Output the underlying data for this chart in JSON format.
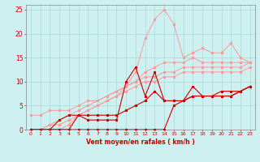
{
  "title": "",
  "xlabel": "Vent moyen/en rafales ( km/h )",
  "bg_color": "#cff0f0",
  "grid_color": "#aadddd",
  "line_color_light": "#ff9999",
  "line_color_dark": "#cc0000",
  "xlim": [
    -0.5,
    23.5
  ],
  "ylim": [
    0,
    26
  ],
  "xticks": [
    0,
    1,
    2,
    3,
    4,
    5,
    6,
    7,
    8,
    9,
    10,
    11,
    12,
    13,
    14,
    15,
    16,
    17,
    18,
    19,
    20,
    21,
    22,
    23
  ],
  "yticks": [
    0,
    5,
    10,
    15,
    20,
    25
  ],
  "lines_light": [
    [
      0,
      3,
      1,
      3,
      2,
      4,
      3,
      4,
      4,
      4,
      5,
      5,
      6,
      6,
      7,
      6,
      8,
      7,
      9,
      8,
      10,
      9,
      11,
      10,
      12,
      12,
      13,
      13,
      14,
      14,
      15,
      14,
      16,
      14,
      17,
      15,
      18,
      14,
      19,
      14,
      20,
      14,
      21,
      14,
      22,
      14,
      23,
      14
    ],
    [
      0,
      0,
      1,
      0,
      2,
      0,
      3,
      0,
      4,
      1,
      5,
      3,
      6,
      4,
      7,
      5,
      8,
      6,
      9,
      7,
      10,
      9,
      11,
      12,
      12,
      19,
      13,
      23,
      14,
      25,
      15,
      22,
      16,
      15,
      17,
      16,
      18,
      17,
      19,
      16,
      20,
      16,
      21,
      18,
      22,
      15,
      23,
      14
    ],
    [
      0,
      0,
      1,
      0,
      2,
      1,
      3,
      2,
      4,
      3,
      5,
      4,
      6,
      5,
      7,
      6,
      8,
      7,
      9,
      8,
      10,
      9,
      11,
      10,
      12,
      11,
      13,
      11,
      14,
      12,
      15,
      12,
      16,
      13,
      17,
      13,
      18,
      13,
      19,
      13,
      20,
      13,
      21,
      13,
      22,
      13,
      23,
      14
    ],
    [
      0,
      0,
      1,
      0,
      2,
      1,
      3,
      1,
      4,
      2,
      5,
      3,
      6,
      4,
      7,
      5,
      8,
      6,
      9,
      7,
      10,
      8,
      11,
      9,
      12,
      10,
      13,
      10,
      14,
      11,
      15,
      11,
      16,
      12,
      17,
      12,
      18,
      12,
      19,
      12,
      20,
      12,
      21,
      12,
      22,
      12,
      23,
      13
    ]
  ],
  "lines_dark": [
    [
      0,
      0,
      1,
      0,
      2,
      0,
      3,
      0,
      4,
      0,
      5,
      3,
      6,
      3,
      7,
      3,
      8,
      3,
      9,
      3,
      10,
      4,
      11,
      5,
      12,
      6,
      13,
      8,
      14,
      6,
      15,
      6,
      16,
      6,
      17,
      7,
      18,
      7,
      19,
      7,
      20,
      8,
      21,
      8,
      22,
      8,
      23,
      9
    ],
    [
      0,
      0,
      1,
      0,
      2,
      0,
      3,
      2,
      4,
      3,
      5,
      3,
      6,
      2,
      7,
      2,
      8,
      2,
      9,
      2,
      10,
      10,
      11,
      13,
      12,
      7,
      13,
      12,
      14,
      6,
      15,
      6,
      16,
      6,
      17,
      9,
      18,
      7,
      19,
      7,
      20,
      7,
      21,
      7,
      22,
      8,
      23,
      9
    ],
    [
      0,
      0,
      1,
      0,
      2,
      0,
      3,
      0,
      4,
      0,
      5,
      0,
      6,
      0,
      7,
      0,
      8,
      0,
      9,
      0,
      10,
      0,
      11,
      0,
      12,
      0,
      13,
      0,
      14,
      0,
      15,
      5,
      16,
      6,
      17,
      7,
      18,
      7,
      19,
      7,
      20,
      7,
      21,
      7,
      22,
      8,
      23,
      9
    ]
  ]
}
